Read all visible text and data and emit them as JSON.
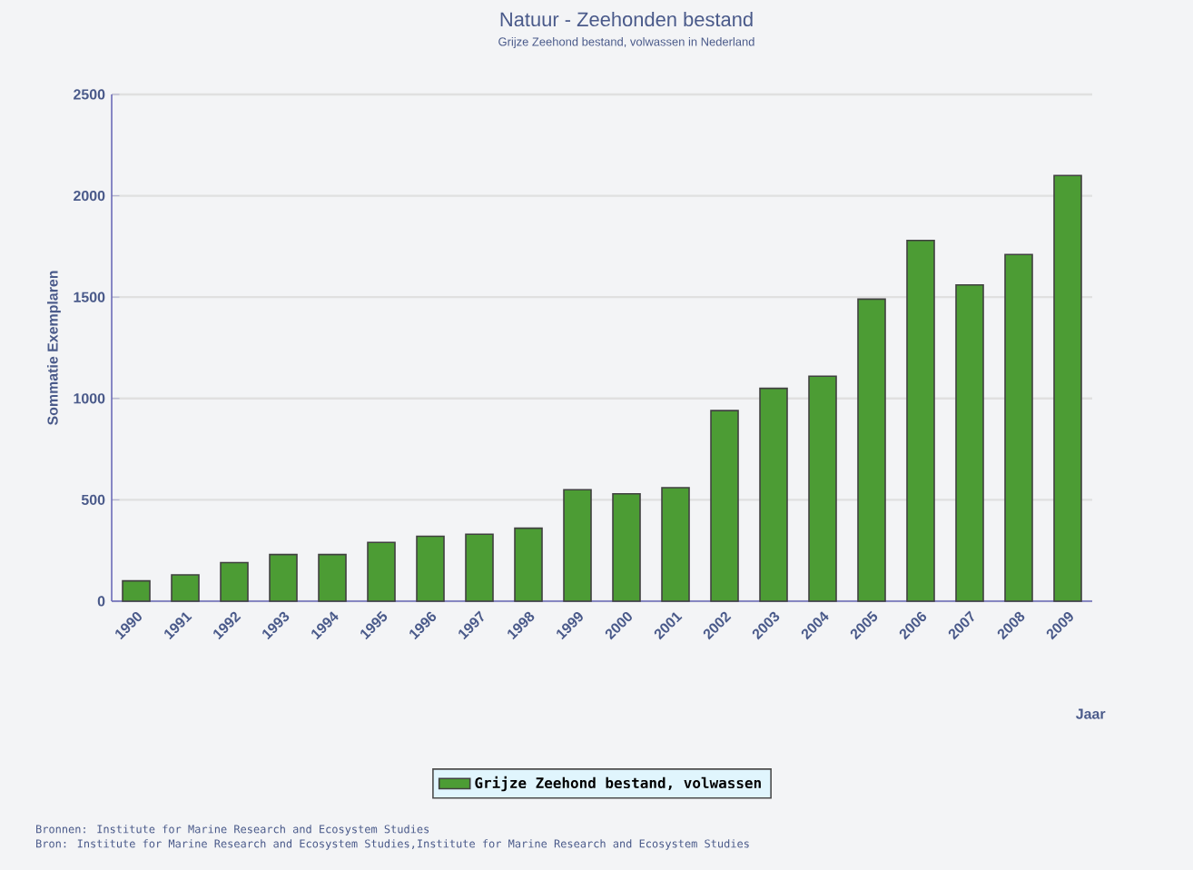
{
  "chart_data": {
    "type": "bar",
    "title": "Natuur - Zeehonden bestand",
    "subtitle": "Grijze Zeehond bestand, volwassen in Nederland",
    "xlabel": "Jaar",
    "ylabel": "Sommatie Exemplaren",
    "categories": [
      "1990",
      "1991",
      "1992",
      "1993",
      "1994",
      "1995",
      "1996",
      "1997",
      "1998",
      "1999",
      "2000",
      "2001",
      "2002",
      "2003",
      "2004",
      "2005",
      "2006",
      "2007",
      "2008",
      "2009"
    ],
    "series": [
      {
        "name": "Grijze Zeehond bestand, volwassen",
        "color": "#4c9c34",
        "values": [
          100,
          130,
          190,
          230,
          230,
          290,
          320,
          330,
          360,
          550,
          530,
          560,
          940,
          1050,
          1110,
          1490,
          1780,
          1560,
          1710,
          2100
        ]
      }
    ],
    "ylim": [
      0,
      2500
    ],
    "yticks": [
      0,
      500,
      1000,
      1500,
      2000,
      2500
    ],
    "grid": "y",
    "legend": "bottom",
    "annotations": [
      "Bronnen: Institute for Marine Research and Ecosystem Studies",
      "Bron: Institute for Marine Research and Ecosystem Studies,Institute for Marine Research and Ecosystem Studies"
    ]
  }
}
